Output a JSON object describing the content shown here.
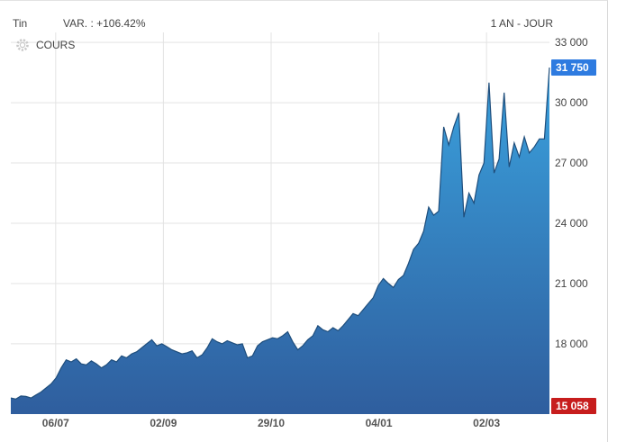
{
  "header": {
    "instrument": "Tin",
    "variation": "VAR. : +106.42%",
    "period": "1 AN - JOUR"
  },
  "legend": {
    "label": "COURS",
    "icon": "gear-icon"
  },
  "colors": {
    "area_top": "#3aa2de",
    "area_bottom": "#2f5e9e",
    "line": "#1f4e7c",
    "last_badge": "#2e7be0",
    "low_badge": "#c71d1d",
    "grid": "#e3e3e3"
  },
  "chart_data": {
    "type": "area",
    "series": [
      {
        "values": [
          15300,
          15250,
          15400,
          15380,
          15300,
          15450,
          15600,
          15800,
          16000,
          16300,
          16800,
          17200,
          17100,
          17250,
          17000,
          16950,
          17150,
          17000,
          16800,
          16950,
          17200,
          17100,
          17400,
          17300,
          17500,
          17600,
          17800,
          18000,
          18200,
          17900,
          18000,
          17850,
          17700,
          17600,
          17500,
          17550,
          17650,
          17300,
          17450,
          17800,
          18250,
          18100,
          18000,
          18150,
          18050,
          17950,
          18000,
          17300,
          17400,
          17900,
          18100,
          18200,
          18300,
          18250,
          18400,
          18600,
          18100,
          17700,
          17900,
          18200,
          18400,
          18900,
          18700,
          18600,
          18800,
          18650,
          18900,
          19200,
          19500,
          19400,
          19700,
          20000,
          20300,
          20900,
          21250,
          21000,
          20800,
          21200,
          21400,
          22000,
          22700,
          23000,
          23600,
          24800,
          24400,
          24600,
          28800,
          27900,
          28800,
          29500,
          24300,
          25500,
          25000,
          26400,
          27000,
          31000,
          26500,
          27200,
          30500,
          26800,
          28000,
          27300,
          28300,
          27500,
          27800,
          28200,
          28200,
          31750
        ]
      }
    ],
    "x_tick_labels": [
      "06/07",
      "02/09",
      "29/10",
      "04/01",
      "02/03"
    ],
    "y_ticks": [
      18000,
      21000,
      24000,
      27000,
      30000,
      33000
    ],
    "y_tick_labels": [
      "18 000",
      "21 000",
      "24 000",
      "27 000",
      "30 000",
      "33 000"
    ],
    "ylim": [
      14500,
      33500
    ],
    "last_value_label": "31 750",
    "min_value_label": "15 058",
    "grid": true
  }
}
